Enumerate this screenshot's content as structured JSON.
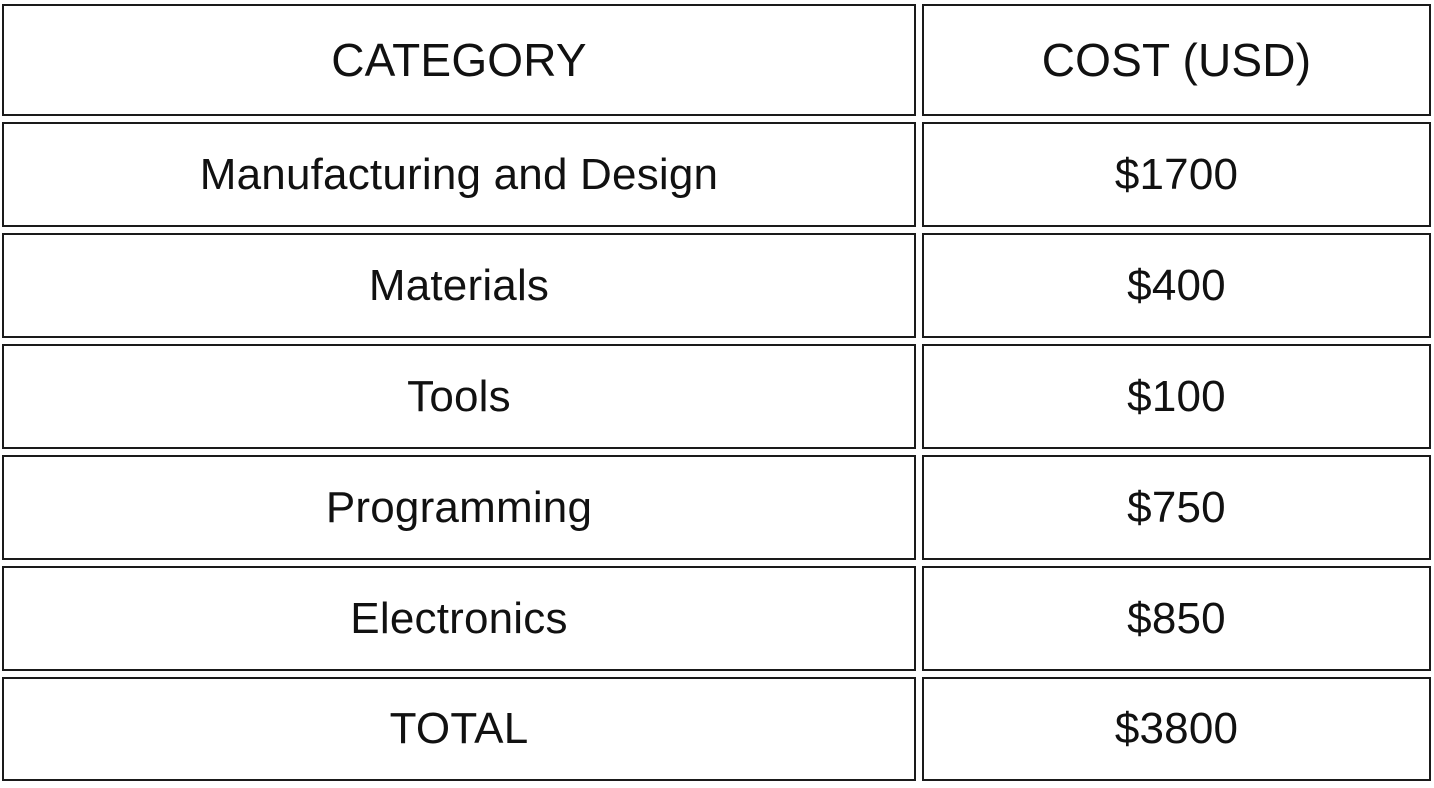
{
  "table": {
    "headers": [
      "CATEGORY",
      "COST (USD)"
    ],
    "rows": [
      [
        "Manufacturing and Design",
        "$1700"
      ],
      [
        "Materials",
        "$400"
      ],
      [
        "Tools",
        "$100"
      ],
      [
        "Programming",
        "$750"
      ],
      [
        "Electronics",
        "$850"
      ]
    ],
    "total": [
      "TOTAL",
      "$3800"
    ]
  }
}
